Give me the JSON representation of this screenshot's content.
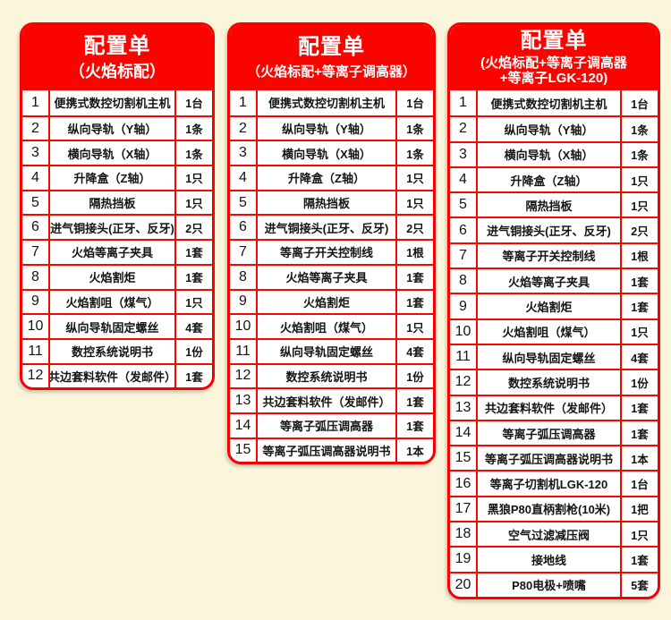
{
  "page": {
    "background_color": "#FAF5DB",
    "accent_red": "#FA0400",
    "header_text_color": "#FFFFFF"
  },
  "tables": [
    {
      "id": "flame-standard",
      "title": "配置单",
      "subtitle": "（火焰标配）",
      "rows": [
        {
          "no": "1",
          "item": "便携式数控切割机主机",
          "qty": "1台"
        },
        {
          "no": "2",
          "item": "纵向导轨（Y轴）",
          "qty": "1条"
        },
        {
          "no": "3",
          "item": "横向导轨（X轴）",
          "qty": "1条"
        },
        {
          "no": "4",
          "item": "升降盒（Z轴）",
          "qty": "1只"
        },
        {
          "no": "5",
          "item": "隔热挡板",
          "qty": "1只"
        },
        {
          "no": "6",
          "item": "进气铜接头(正牙、反牙)",
          "qty": "2只"
        },
        {
          "no": "7",
          "item": "火焰等离子夹具",
          "qty": "1套"
        },
        {
          "no": "8",
          "item": "火焰割炬",
          "qty": "1套"
        },
        {
          "no": "9",
          "item": "火焰割咀（煤气）",
          "qty": "1只"
        },
        {
          "no": "10",
          "item": "纵向导轨固定螺丝",
          "qty": "4套"
        },
        {
          "no": "11",
          "item": "数控系统说明书",
          "qty": "1份"
        },
        {
          "no": "12",
          "item": "共边套料软件（发邮件）",
          "qty": "1套"
        }
      ]
    },
    {
      "id": "flame-plus-height-controller",
      "title": "配置单",
      "subtitle": "（火焰标配+等离子调高器）",
      "rows": [
        {
          "no": "1",
          "item": "便携式数控切割机主机",
          "qty": "1台"
        },
        {
          "no": "2",
          "item": "纵向导轨（Y轴）",
          "qty": "1条"
        },
        {
          "no": "3",
          "item": "横向导轨（X轴）",
          "qty": "1条"
        },
        {
          "no": "4",
          "item": "升降盒（Z轴）",
          "qty": "1只"
        },
        {
          "no": "5",
          "item": "隔热挡板",
          "qty": "1只"
        },
        {
          "no": "6",
          "item": "进气铜接头(正牙、反牙)",
          "qty": "2只"
        },
        {
          "no": "7",
          "item": "等离子开关控制线",
          "qty": "1根"
        },
        {
          "no": "8",
          "item": "火焰等离子夹具",
          "qty": "1套"
        },
        {
          "no": "9",
          "item": "火焰割炬",
          "qty": "1套"
        },
        {
          "no": "10",
          "item": "火焰割咀（煤气）",
          "qty": "1只"
        },
        {
          "no": "11",
          "item": "纵向导轨固定螺丝",
          "qty": "4套"
        },
        {
          "no": "12",
          "item": "数控系统说明书",
          "qty": "1份"
        },
        {
          "no": "13",
          "item": "共边套料软件（发邮件）",
          "qty": "1套"
        },
        {
          "no": "14",
          "item": "等离子弧压调高器",
          "qty": "1套"
        },
        {
          "no": "15",
          "item": "等离子弧压调高器说明书",
          "qty": "1本"
        }
      ]
    },
    {
      "id": "flame-plus-height-controller-plus-lgk120",
      "title": "配置单",
      "subtitle": "(火焰标配+等离子调高器\n+等离子LGK-120)",
      "rows": [
        {
          "no": "1",
          "item": "便携式数控切割机主机",
          "qty": "1台"
        },
        {
          "no": "2",
          "item": "纵向导轨（Y轴）",
          "qty": "1条"
        },
        {
          "no": "3",
          "item": "横向导轨（X轴）",
          "qty": "1条"
        },
        {
          "no": "4",
          "item": "升降盒（Z轴）",
          "qty": "1只"
        },
        {
          "no": "5",
          "item": "隔热挡板",
          "qty": "1只"
        },
        {
          "no": "6",
          "item": "进气铜接头(正牙、反牙)",
          "qty": "2只"
        },
        {
          "no": "7",
          "item": "等离子开关控制线",
          "qty": "1根"
        },
        {
          "no": "8",
          "item": "火焰等离子夹具",
          "qty": "1套"
        },
        {
          "no": "9",
          "item": "火焰割炬",
          "qty": "1套"
        },
        {
          "no": "10",
          "item": "火焰割咀（煤气）",
          "qty": "1只"
        },
        {
          "no": "11",
          "item": "纵向导轨固定螺丝",
          "qty": "4套"
        },
        {
          "no": "12",
          "item": "数控系统说明书",
          "qty": "1份"
        },
        {
          "no": "13",
          "item": "共边套料软件（发邮件）",
          "qty": "1套"
        },
        {
          "no": "14",
          "item": "等离子弧压调高器",
          "qty": "1套"
        },
        {
          "no": "15",
          "item": "等离子弧压调高器说明书",
          "qty": "1本"
        },
        {
          "no": "16",
          "item": "等离子切割机LGK-120",
          "qty": "1台"
        },
        {
          "no": "17",
          "item": "黑狼P80直柄割枪(10米)",
          "qty": "1把"
        },
        {
          "no": "18",
          "item": "空气过滤减压阀",
          "qty": "1只"
        },
        {
          "no": "19",
          "item": "接地线",
          "qty": "1套"
        },
        {
          "no": "20",
          "item": "P80电极+喷嘴",
          "qty": "5套"
        }
      ]
    }
  ]
}
